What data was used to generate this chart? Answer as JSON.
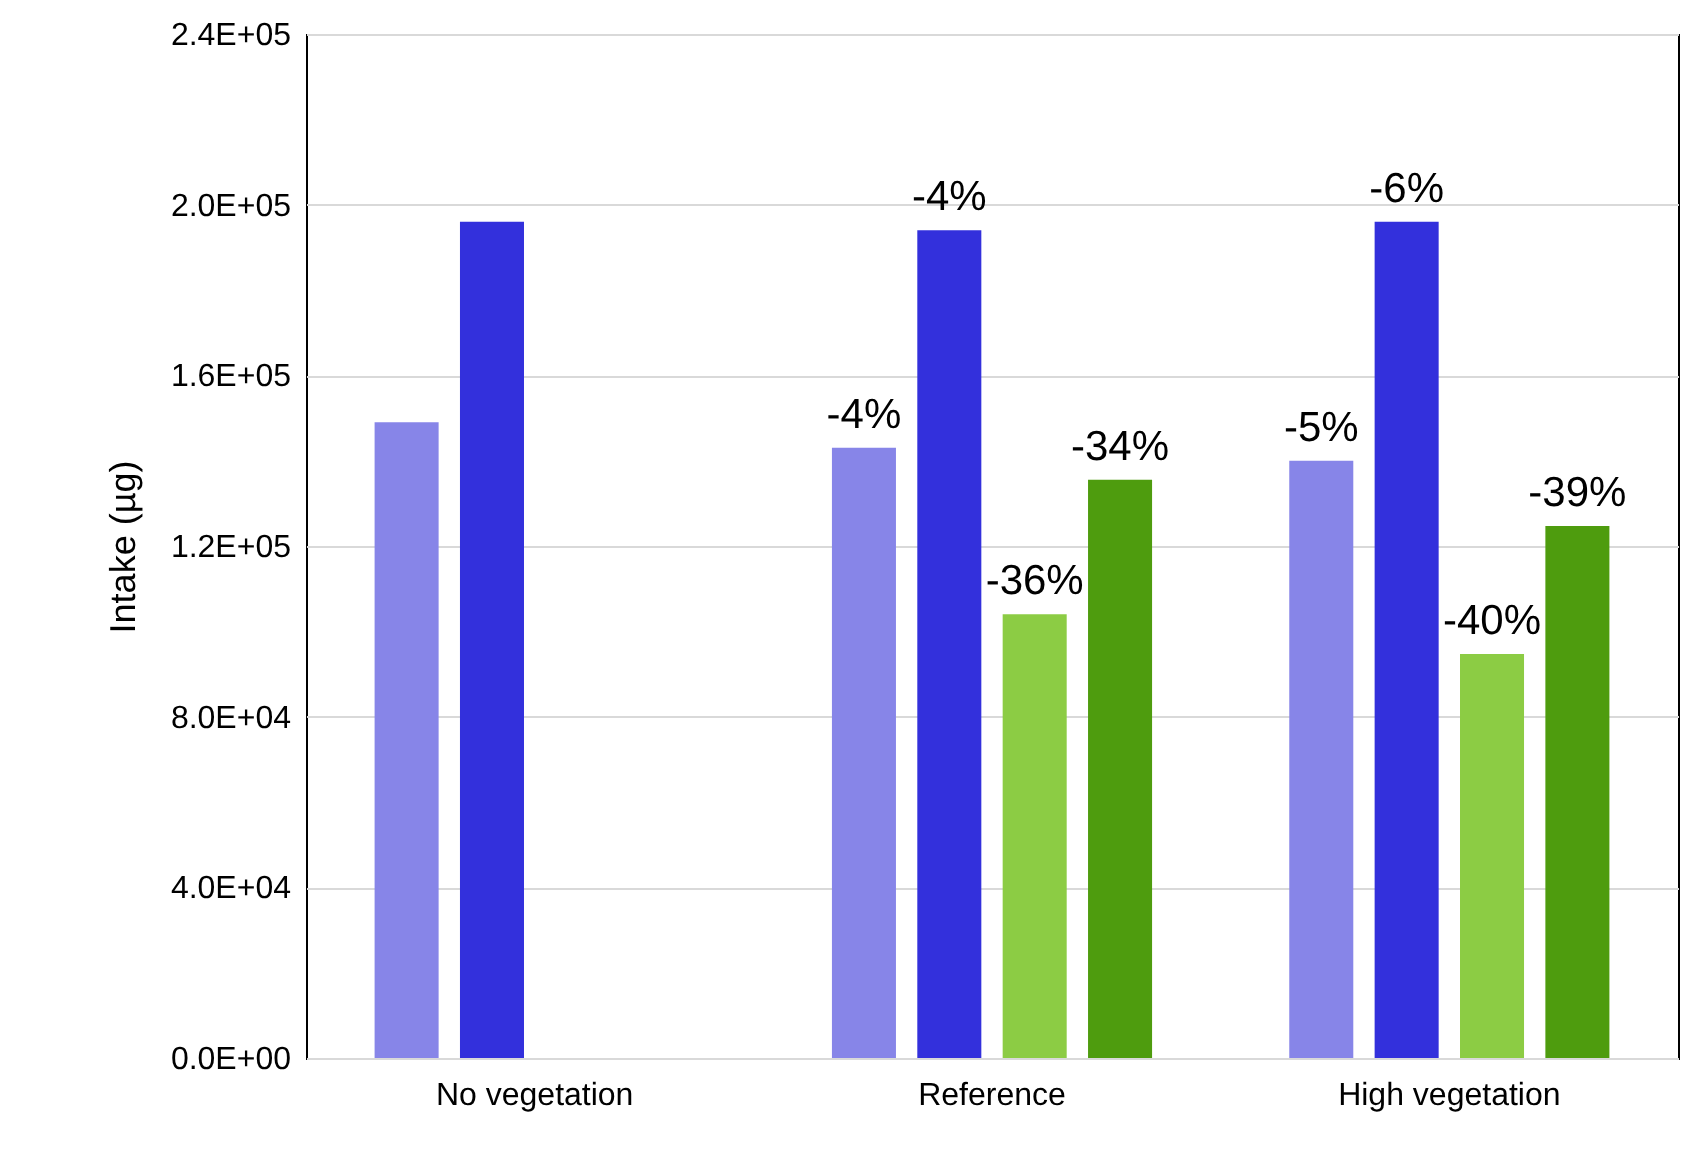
{
  "chart_data": {
    "type": "bar",
    "ylabel": "Intake (µg)",
    "categories": [
      "No vegetation",
      "Reference",
      "High vegetation"
    ],
    "series": [
      {
        "color": "#8785e8",
        "values": [
          149000,
          143000,
          140000
        ]
      },
      {
        "color": "#3330dc",
        "values": [
          196000,
          194000,
          196000
        ]
      },
      {
        "color": "#8ccc44",
        "values": [
          null,
          104000,
          94700
        ]
      },
      {
        "color": "#4e9c0e",
        "values": [
          null,
          135500,
          124700
        ]
      }
    ],
    "annotations": [
      "-4%",
      "-5%",
      "-4%",
      "-6%",
      "-36%",
      "-40%",
      "-34%",
      "-39%"
    ],
    "ylim": [
      0,
      240000
    ],
    "yticks": [
      {
        "value": 0,
        "label": "0.0E+00"
      },
      {
        "value": 40000,
        "label": "4.0E+04"
      },
      {
        "value": 80000,
        "label": "8.0E+04"
      },
      {
        "value": 120000,
        "label": "1.2E+05"
      },
      {
        "value": 160000,
        "label": "1.6E+05"
      },
      {
        "value": 200000,
        "label": "2.0E+05"
      },
      {
        "value": 240000,
        "label": "2.4E+05"
      }
    ],
    "grid": "y"
  }
}
